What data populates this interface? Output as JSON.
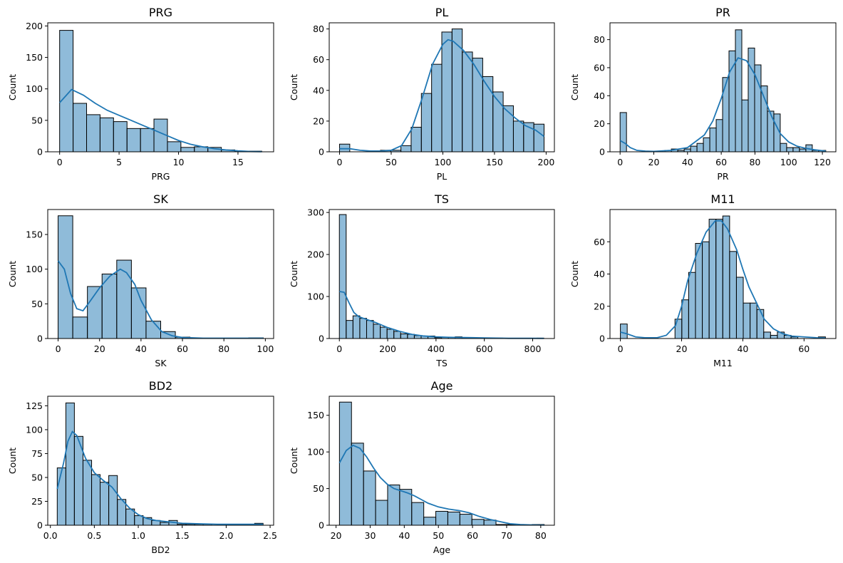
{
  "chart_data": [
    {
      "type": "histogram",
      "title": "PRG",
      "xlabel": "PRG",
      "ylabel": "Count",
      "xlim": [
        -1,
        18
      ],
      "ylim": [
        0,
        205
      ],
      "xticks": [
        0,
        5,
        10,
        15
      ],
      "yticks": [
        0,
        50,
        100,
        150,
        200
      ],
      "bins": [
        0,
        1.133,
        2.267,
        3.4,
        4.533,
        5.667,
        6.8,
        7.933,
        9.067,
        10.2,
        11.333,
        12.467,
        13.6,
        14.733,
        15.867,
        17
      ],
      "counts": [
        193,
        77,
        59,
        54,
        48,
        37,
        37,
        52,
        16,
        7,
        8,
        7,
        3,
        1,
        1
      ],
      "kde": [
        [
          0,
          78
        ],
        [
          1,
          99
        ],
        [
          2,
          90
        ],
        [
          3,
          77
        ],
        [
          4,
          66
        ],
        [
          5,
          58
        ],
        [
          6,
          50
        ],
        [
          7,
          42
        ],
        [
          8,
          34
        ],
        [
          9,
          26
        ],
        [
          10,
          18
        ],
        [
          11,
          12
        ],
        [
          12,
          8
        ],
        [
          13,
          5
        ],
        [
          14,
          3
        ],
        [
          15,
          1.5
        ],
        [
          16,
          0.5
        ],
        [
          17,
          0.2
        ]
      ]
    },
    {
      "type": "histogram",
      "title": "PL",
      "xlabel": "PL",
      "ylabel": "Count",
      "xlim": [
        -10,
        208
      ],
      "ylim": [
        0,
        84
      ],
      "xticks": [
        0,
        50,
        100,
        150,
        200
      ],
      "yticks": [
        0,
        20,
        40,
        60,
        80
      ],
      "bins": [
        0,
        9.9,
        19.8,
        29.7,
        39.6,
        49.5,
        59.4,
        69.3,
        79.2,
        89.1,
        99,
        108.9,
        118.8,
        128.7,
        138.6,
        148.5,
        158.4,
        168.3,
        178.2,
        188.1,
        198
      ],
      "counts": [
        5,
        0,
        0,
        0,
        1,
        1,
        4,
        16,
        38,
        57,
        78,
        80,
        65,
        61,
        49,
        39,
        30,
        20,
        19,
        18
      ],
      "kde": [
        [
          0,
          2
        ],
        [
          10,
          2
        ],
        [
          20,
          1
        ],
        [
          30,
          0.5
        ],
        [
          40,
          0.5
        ],
        [
          50,
          1
        ],
        [
          60,
          4
        ],
        [
          70,
          15
        ],
        [
          80,
          35
        ],
        [
          90,
          57
        ],
        [
          100,
          70
        ],
        [
          105,
          73
        ],
        [
          110,
          72
        ],
        [
          120,
          66
        ],
        [
          130,
          57
        ],
        [
          140,
          46
        ],
        [
          150,
          36
        ],
        [
          160,
          28
        ],
        [
          170,
          22
        ],
        [
          180,
          17
        ],
        [
          190,
          14
        ],
        [
          198,
          10
        ]
      ]
    },
    {
      "type": "histogram",
      "title": "PR",
      "xlabel": "PR",
      "ylabel": "Count",
      "xlim": [
        -6,
        128
      ],
      "ylim": [
        0,
        92
      ],
      "xticks": [
        0,
        20,
        40,
        60,
        80,
        100,
        120
      ],
      "yticks": [
        0,
        20,
        40,
        60,
        80
      ],
      "bins": [
        0,
        3.8,
        7.6,
        11.4,
        15.2,
        19,
        22.8,
        26.6,
        30.4,
        34.2,
        38,
        41.8,
        45.6,
        49.4,
        53.2,
        57,
        60.8,
        64.6,
        68.4,
        72.2,
        76,
        79.8,
        83.6,
        87.4,
        91.2,
        95,
        98.8,
        102.6,
        106.4,
        110.2,
        114,
        117.8,
        122
      ],
      "counts": [
        28,
        0,
        0,
        0,
        0,
        0,
        0,
        1,
        2,
        1,
        2,
        4,
        6,
        10,
        17,
        23,
        53,
        72,
        87,
        37,
        74,
        62,
        47,
        29,
        27,
        6,
        3,
        3,
        2,
        5,
        1,
        1
      ],
      "kde": [
        [
          0,
          8
        ],
        [
          3,
          6
        ],
        [
          6,
          3
        ],
        [
          10,
          1
        ],
        [
          15,
          0.5
        ],
        [
          20,
          0.3
        ],
        [
          30,
          1
        ],
        [
          40,
          3
        ],
        [
          50,
          12
        ],
        [
          55,
          22
        ],
        [
          60,
          38
        ],
        [
          65,
          57
        ],
        [
          70,
          67
        ],
        [
          75,
          65
        ],
        [
          80,
          55
        ],
        [
          85,
          40
        ],
        [
          90,
          25
        ],
        [
          95,
          13
        ],
        [
          100,
          7
        ],
        [
          105,
          4
        ],
        [
          110,
          2.5
        ],
        [
          115,
          1.5
        ],
        [
          122,
          0.5
        ]
      ]
    },
    {
      "type": "histogram",
      "title": "SK",
      "xlabel": "SK",
      "ylabel": "Count",
      "xlim": [
        -5,
        104
      ],
      "ylim": [
        0,
        186
      ],
      "xticks": [
        0,
        20,
        40,
        60,
        80,
        100
      ],
      "yticks": [
        0,
        50,
        100,
        150
      ],
      "bins": [
        0,
        7.07,
        14.14,
        21.21,
        28.29,
        35.36,
        42.43,
        49.5,
        56.57,
        63.64,
        70.71,
        77.79,
        84.86,
        91.93,
        99
      ],
      "counts": [
        177,
        31,
        75,
        93,
        113,
        73,
        25,
        10,
        2,
        0,
        0,
        0,
        0,
        1
      ],
      "kde": [
        [
          0,
          112
        ],
        [
          3,
          100
        ],
        [
          6,
          65
        ],
        [
          9,
          43
        ],
        [
          12,
          40
        ],
        [
          15,
          52
        ],
        [
          20,
          73
        ],
        [
          25,
          90
        ],
        [
          30,
          100
        ],
        [
          33,
          95
        ],
        [
          37,
          78
        ],
        [
          40,
          55
        ],
        [
          45,
          27
        ],
        [
          50,
          10
        ],
        [
          55,
          4
        ],
        [
          60,
          1.5
        ],
        [
          70,
          0.5
        ],
        [
          80,
          0.5
        ],
        [
          90,
          0.5
        ],
        [
          99,
          0.5
        ]
      ]
    },
    {
      "type": "histogram",
      "title": "TS",
      "xlabel": "TS",
      "ylabel": "Count",
      "xlim": [
        -42,
        890
      ],
      "ylim": [
        0,
        307
      ],
      "xticks": [
        0,
        200,
        400,
        600,
        800
      ],
      "yticks": [
        0,
        100,
        200,
        300
      ],
      "bins": [
        0,
        28.2,
        56.4,
        84.6,
        112.8,
        141,
        169.2,
        197.4,
        225.6,
        253.8,
        282,
        310.2,
        338.4,
        366.6,
        394.8,
        423,
        451.2,
        479.4,
        507.6,
        535.8,
        564,
        592.2,
        620.4,
        648.6,
        676.8,
        705,
        733.2,
        761.4,
        789.6,
        817.8,
        846
      ],
      "counts": [
        295,
        43,
        54,
        48,
        43,
        34,
        27,
        22,
        17,
        11,
        10,
        7,
        6,
        6,
        2,
        3,
        3,
        4,
        1,
        1,
        1,
        0,
        1,
        1,
        0,
        0,
        0,
        0,
        0,
        1
      ],
      "kde": [
        [
          0,
          112
        ],
        [
          20,
          110
        ],
        [
          40,
          85
        ],
        [
          60,
          62
        ],
        [
          80,
          52
        ],
        [
          100,
          48
        ],
        [
          150,
          38
        ],
        [
          200,
          26
        ],
        [
          250,
          17
        ],
        [
          300,
          10
        ],
        [
          350,
          6
        ],
        [
          400,
          4
        ],
        [
          450,
          3
        ],
        [
          500,
          2.5
        ],
        [
          550,
          2
        ],
        [
          600,
          1.5
        ],
        [
          650,
          1
        ],
        [
          700,
          0.5
        ],
        [
          800,
          0.5
        ],
        [
          846,
          0.3
        ]
      ]
    },
    {
      "type": "histogram",
      "title": "M11",
      "xlabel": "M11",
      "ylabel": "Count",
      "xlim": [
        -3.4,
        70.4
      ],
      "ylim": [
        0,
        80
      ],
      "xticks": [
        0,
        20,
        40,
        60
      ],
      "yticks": [
        0,
        20,
        40,
        60
      ],
      "bins": [
        0,
        2.23,
        4.46,
        6.69,
        8.92,
        11.15,
        13.38,
        15.61,
        17.84,
        20.07,
        22.3,
        24.53,
        26.76,
        28.99,
        31.22,
        33.45,
        35.68,
        37.91,
        40.14,
        42.37,
        44.6,
        46.83,
        49.06,
        51.29,
        53.52,
        55.75,
        57.98,
        60.21,
        62.44,
        64.67,
        67
      ],
      "counts": [
        9,
        0,
        0,
        0,
        0,
        0,
        0,
        0,
        12,
        24,
        41,
        59,
        60,
        74,
        74,
        76,
        54,
        38,
        22,
        22,
        18,
        4,
        2,
        4,
        2,
        1,
        0,
        0,
        0,
        1
      ],
      "kde": [
        [
          0,
          4
        ],
        [
          2,
          3
        ],
        [
          5,
          1
        ],
        [
          8,
          0.5
        ],
        [
          12,
          0.5
        ],
        [
          15,
          2
        ],
        [
          18,
          8
        ],
        [
          20,
          20
        ],
        [
          22,
          36
        ],
        [
          25,
          53
        ],
        [
          28,
          66
        ],
        [
          31,
          73
        ],
        [
          33,
          73
        ],
        [
          35,
          68
        ],
        [
          38,
          55
        ],
        [
          40,
          43
        ],
        [
          42,
          32
        ],
        [
          45,
          20
        ],
        [
          47,
          12
        ],
        [
          50,
          6
        ],
        [
          53,
          3
        ],
        [
          56,
          1.5
        ],
        [
          60,
          1
        ],
        [
          64,
          0.5
        ],
        [
          67,
          0.3
        ]
      ]
    },
    {
      "type": "histogram",
      "title": "BD2",
      "xlabel": "BD2",
      "ylabel": "Count",
      "xlim": [
        -0.03,
        2.54
      ],
      "ylim": [
        0,
        135
      ],
      "xticks": [
        0.0,
        0.5,
        1.0,
        1.5,
        2.0,
        2.5
      ],
      "yticks": [
        0,
        25,
        50,
        75,
        100,
        125
      ],
      "bins": [
        0.078,
        0.176,
        0.273,
        0.371,
        0.469,
        0.566,
        0.664,
        0.762,
        0.859,
        0.957,
        1.055,
        1.152,
        1.25,
        1.348,
        1.445,
        1.543,
        1.641,
        1.738,
        1.836,
        1.934,
        2.031,
        2.129,
        2.227,
        2.324,
        2.42
      ],
      "counts": [
        60,
        128,
        93,
        68,
        53,
        45,
        52,
        27,
        17,
        10,
        8,
        5,
        3,
        5,
        1,
        1,
        1,
        1,
        0,
        0,
        0,
        0,
        1,
        2
      ],
      "kde": [
        [
          0.078,
          38
        ],
        [
          0.15,
          65
        ],
        [
          0.2,
          88
        ],
        [
          0.25,
          98
        ],
        [
          0.3,
          94
        ],
        [
          0.35,
          82
        ],
        [
          0.4,
          70
        ],
        [
          0.5,
          55
        ],
        [
          0.6,
          47
        ],
        [
          0.7,
          40
        ],
        [
          0.8,
          28
        ],
        [
          0.9,
          18
        ],
        [
          1.0,
          11
        ],
        [
          1.1,
          7
        ],
        [
          1.2,
          5
        ],
        [
          1.3,
          4
        ],
        [
          1.4,
          3
        ],
        [
          1.5,
          2
        ],
        [
          1.7,
          1.5
        ],
        [
          1.9,
          1
        ],
        [
          2.1,
          1
        ],
        [
          2.3,
          1
        ],
        [
          2.42,
          1
        ]
      ]
    },
    {
      "type": "histogram",
      "title": "Age",
      "xlabel": "Age",
      "ylabel": "Count",
      "xlim": [
        18,
        84
      ],
      "ylim": [
        0,
        176
      ],
      "xticks": [
        20,
        30,
        40,
        50,
        60,
        70,
        80
      ],
      "yticks": [
        0,
        50,
        100,
        150
      ],
      "bins": [
        21,
        24.53,
        28.06,
        31.59,
        35.12,
        38.65,
        42.18,
        45.71,
        49.24,
        52.76,
        56.29,
        59.82,
        63.35,
        66.88,
        70.41,
        73.94,
        77.47,
        81
      ],
      "counts": [
        168,
        112,
        74,
        34,
        55,
        49,
        31,
        11,
        19,
        18,
        15,
        8,
        7,
        1,
        1,
        0,
        1
      ],
      "kde": [
        [
          21,
          85
        ],
        [
          23,
          102
        ],
        [
          25,
          109
        ],
        [
          27,
          105
        ],
        [
          29,
          93
        ],
        [
          31,
          78
        ],
        [
          33,
          65
        ],
        [
          35,
          56
        ],
        [
          37,
          50
        ],
        [
          39,
          47
        ],
        [
          41,
          44
        ],
        [
          43,
          40
        ],
        [
          45,
          35
        ],
        [
          47,
          30
        ],
        [
          50,
          25
        ],
        [
          53,
          22
        ],
        [
          56,
          20
        ],
        [
          59,
          17
        ],
        [
          62,
          12
        ],
        [
          65,
          8
        ],
        [
          68,
          5
        ],
        [
          71,
          2
        ],
        [
          74,
          1
        ],
        [
          77,
          0.5
        ],
        [
          81,
          0.2
        ]
      ]
    }
  ]
}
